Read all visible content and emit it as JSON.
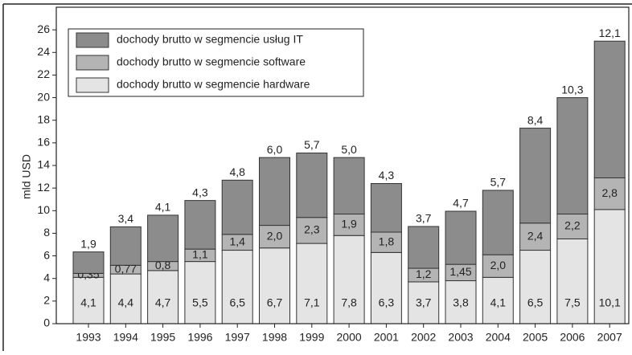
{
  "chart_data": {
    "type": "stacked_bar",
    "y_label": "mld USD",
    "categories": [
      "1993",
      "1994",
      "1995",
      "1996",
      "1997",
      "1998",
      "1999",
      "2000",
      "2001",
      "2002",
      "2003",
      "2004",
      "2005",
      "2006",
      "2007"
    ],
    "series": [
      {
        "name": "dochody brutto w segmencie hardware",
        "color": "#e4e4e4",
        "values": [
          4.1,
          4.4,
          4.7,
          5.5,
          6.5,
          6.7,
          7.1,
          7.8,
          6.3,
          3.7,
          3.8,
          4.1,
          6.5,
          7.5,
          10.1
        ],
        "value_labels": [
          "4,1",
          "4,4",
          "4,7",
          "5,5",
          "6,5",
          "6,7",
          "7,1",
          "7,8",
          "6,3",
          "3,7",
          "3,8",
          "4,1",
          "6,5",
          "7,5",
          "10,1"
        ]
      },
      {
        "name": "dochody brutto w segmencie software",
        "color": "#b4b4b4",
        "values": [
          0.35,
          0.77,
          0.8,
          1.1,
          1.4,
          2.0,
          2.3,
          1.9,
          1.8,
          1.2,
          1.45,
          2.0,
          2.4,
          2.2,
          2.8
        ],
        "value_labels": [
          "0,35",
          "0,77",
          "0,8",
          "1,1",
          "1,4",
          "2,0",
          "2,3",
          "1,9",
          "1,8",
          "1,2",
          "1,45",
          "2,0",
          "2,4",
          "2,2",
          "2,8"
        ]
      },
      {
        "name": "dochody brutto w segmencie usług IT",
        "color": "#8c8c8c",
        "values": [
          1.9,
          3.4,
          4.1,
          4.3,
          4.8,
          6.0,
          5.7,
          5.0,
          4.3,
          3.7,
          4.7,
          5.7,
          8.4,
          10.3,
          12.1
        ],
        "value_labels": [
          "1,9",
          "3,4",
          "4,1",
          "4,3",
          "4,8",
          "6,0",
          "5,7",
          "5,0",
          "4,3",
          "3,7",
          "4,7",
          "5,7",
          "8,4",
          "10,3",
          "12,1"
        ]
      }
    ],
    "ylim": [
      0,
      28
    ],
    "yticks": [
      0,
      2,
      4,
      6,
      8,
      10,
      12,
      14,
      16,
      18,
      20,
      22,
      24,
      26
    ],
    "legend": "upper left"
  }
}
